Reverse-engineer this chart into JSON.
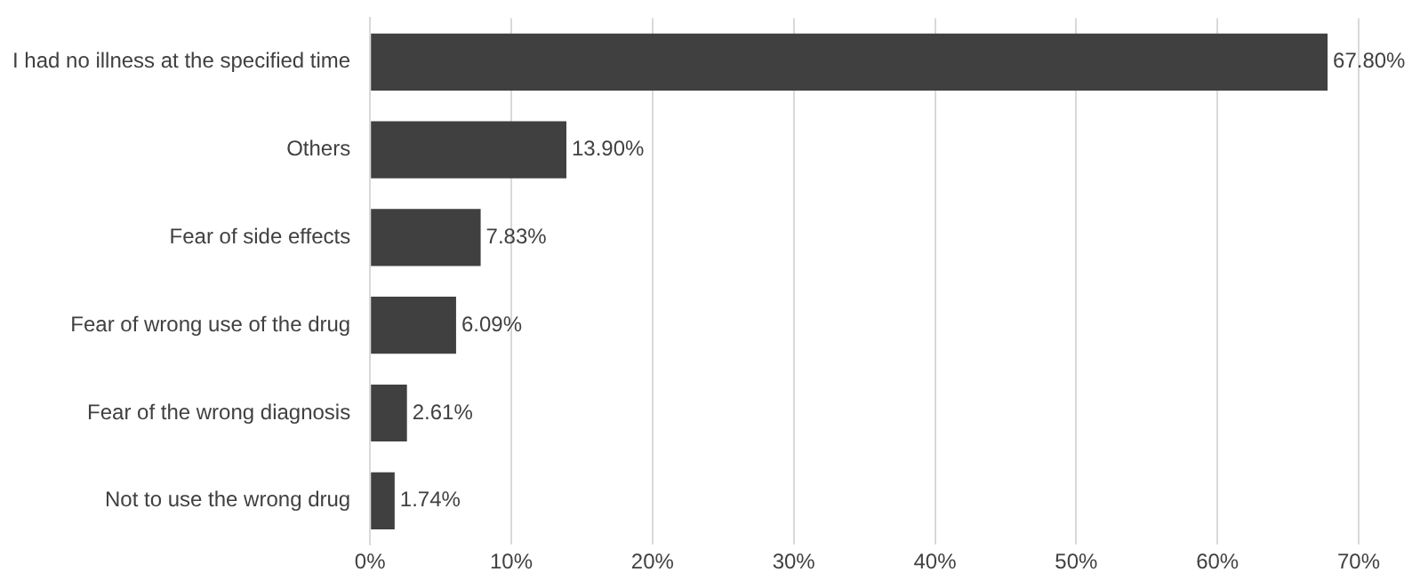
{
  "chart_data": {
    "type": "bar",
    "orientation": "horizontal",
    "categories": [
      "I had no illness at the specified time",
      "Others",
      "Fear of side effects",
      "Fear of wrong use of the drug",
      "Fear of the wrong diagnosis",
      "Not to use the wrong drug"
    ],
    "values": [
      67.8,
      13.9,
      7.83,
      6.09,
      2.61,
      1.74
    ],
    "value_labels": [
      "67.80%",
      "13.90%",
      "7.83%",
      "6.09%",
      "2.61%",
      "1.74%"
    ],
    "color": "#404040",
    "xlim": [
      0,
      70
    ],
    "xticks": [
      {
        "value": 0,
        "label": "0%"
      },
      {
        "value": 10,
        "label": "10%"
      },
      {
        "value": 20,
        "label": "20%"
      },
      {
        "value": 30,
        "label": "30%"
      },
      {
        "value": 40,
        "label": "40%"
      },
      {
        "value": 50,
        "label": "50%"
      },
      {
        "value": 60,
        "label": "60%"
      },
      {
        "value": 70,
        "label": "70%"
      }
    ],
    "grid": "x"
  }
}
